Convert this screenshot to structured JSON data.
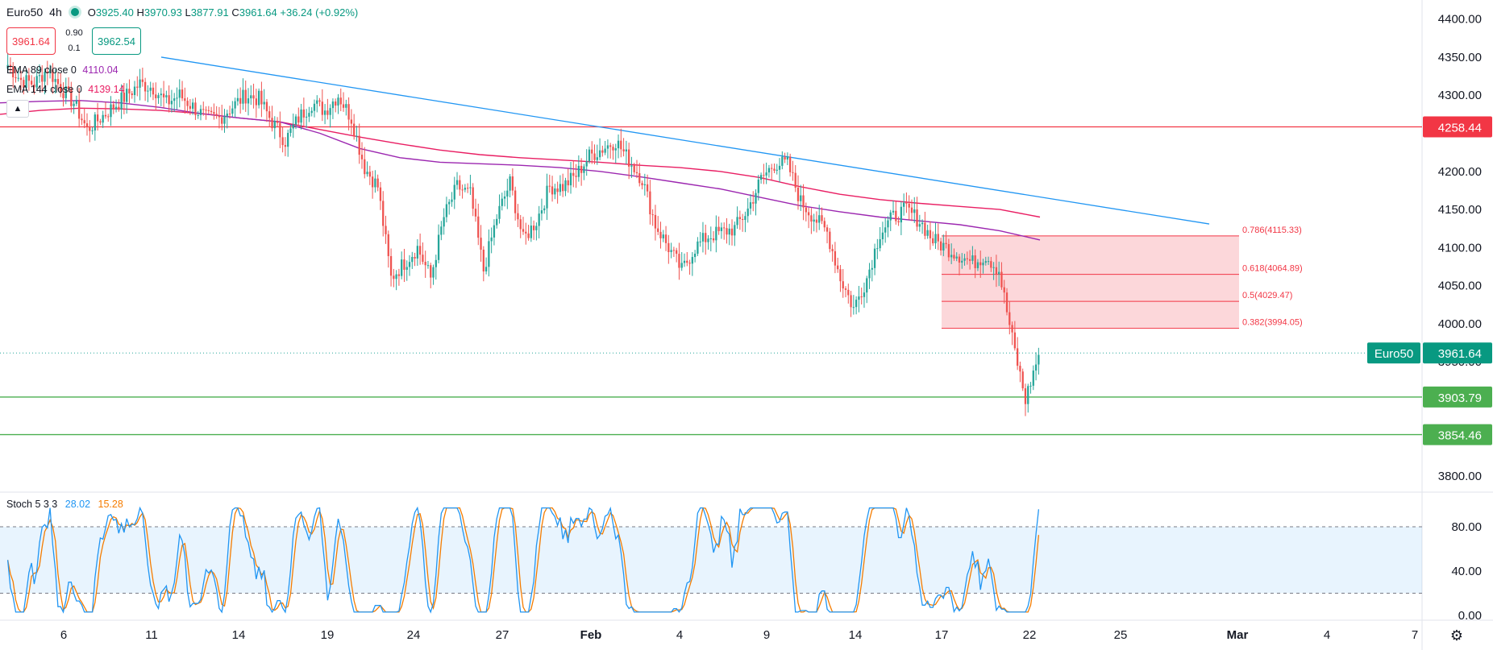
{
  "header": {
    "symbol": "Euro50",
    "timeframe": "4h",
    "o_label": "O",
    "o": "3925.40",
    "h_label": "H",
    "h": "3970.93",
    "l_label": "L",
    "l": "3877.91",
    "c_label": "C",
    "c": "3961.64",
    "change": "+36.24 (+0.92%)"
  },
  "trade": {
    "sell": "3961.64",
    "spread_top": "0.90",
    "spread_bottom": "0.1",
    "buy": "3962.54"
  },
  "indicators": {
    "ema89": {
      "label": "EMA 89 close 0",
      "value": "4110.04",
      "color": "#9c27b0"
    },
    "ema144": {
      "label": "EMA 144 close 0",
      "value": "4139.14",
      "color": "#e91e63"
    },
    "collapse_icon": "chevron-up-icon"
  },
  "stoch": {
    "label": "Stoch",
    "params": "5 3 3",
    "k": "28.02",
    "d": "15.28",
    "k_color": "#2196f3",
    "d_color": "#f57c00",
    "axis": [
      "80.00",
      "40.00",
      "0.00"
    ]
  },
  "colors": {
    "up": "#26a69a",
    "down": "#ef5350",
    "trendline": "#2196f3",
    "resistance": "#f23645",
    "support": "#4caf50",
    "fib_fill": "rgba(242,54,69,0.20)"
  },
  "chart_data": {
    "type": "candlestick",
    "price_axis": [
      "4400.00",
      "4350.00",
      "4300.00",
      "4250.00",
      "4200.00",
      "4150.00",
      "4100.00",
      "4050.00",
      "4000.00",
      "3950.00",
      "3900.00",
      "3850.00",
      "3800.00"
    ],
    "price_range": [
      3780,
      4425
    ],
    "time_axis": [
      "6",
      "11",
      "14",
      "19",
      "24",
      "27",
      "Feb",
      "4",
      "9",
      "14",
      "17",
      "22",
      "25",
      "Mar",
      "4",
      "7"
    ],
    "labels": {
      "resistance": "4258.44",
      "support1": "3903.79",
      "support2": "3854.46",
      "last_symbol": "Euro50",
      "last_price": "3961.64"
    },
    "fib_levels": [
      {
        "label": "0.786(4115.33)",
        "value": 4115.33
      },
      {
        "label": "0.618(4064.89)",
        "value": 4064.89
      },
      {
        "label": "0.5(4029.47)",
        "value": 4029.47
      },
      {
        "label": "0.382(3994.05)",
        "value": 3994.05
      }
    ],
    "anchors": [
      4340,
      4320,
      4315,
      4335,
      4310,
      4290,
      4255,
      4270,
      4285,
      4300,
      4315,
      4310,
      4290,
      4300,
      4285,
      4270,
      4270,
      4285,
      4300,
      4295,
      4265,
      4240,
      4270,
      4290,
      4280,
      4300,
      4270,
      4205,
      4180,
      4060,
      4080,
      4100,
      4060,
      4140,
      4180,
      4170,
      4070,
      4140,
      4185,
      4110,
      4135,
      4180,
      4180,
      4195,
      4220,
      4230,
      4240,
      4215,
      4190,
      4130,
      4100,
      4070,
      4100,
      4115,
      4120,
      4125,
      4150,
      4190,
      4210,
      4210,
      4160,
      4140,
      4120,
      4060,
      4020,
      4060,
      4120,
      4140,
      4150,
      4135,
      4110,
      4100,
      4090,
      4080,
      4090,
      4070,
      3980,
      3900,
      3960
    ],
    "ema89": [
      4290,
      4292,
      4293,
      4290,
      4284,
      4276,
      4270,
      4265,
      4250,
      4230,
      4218,
      4212,
      4210,
      4208,
      4205,
      4200,
      4193,
      4185,
      4177,
      4166,
      4155,
      4147,
      4140,
      4135,
      4130,
      4122,
      4110
    ],
    "ema144": [
      4275,
      4280,
      4283,
      4282,
      4280,
      4276,
      4270,
      4265,
      4255,
      4245,
      4236,
      4228,
      4222,
      4218,
      4215,
      4212,
      4208,
      4205,
      4200,
      4192,
      4180,
      4170,
      4163,
      4158,
      4154,
      4150,
      4140
    ]
  }
}
